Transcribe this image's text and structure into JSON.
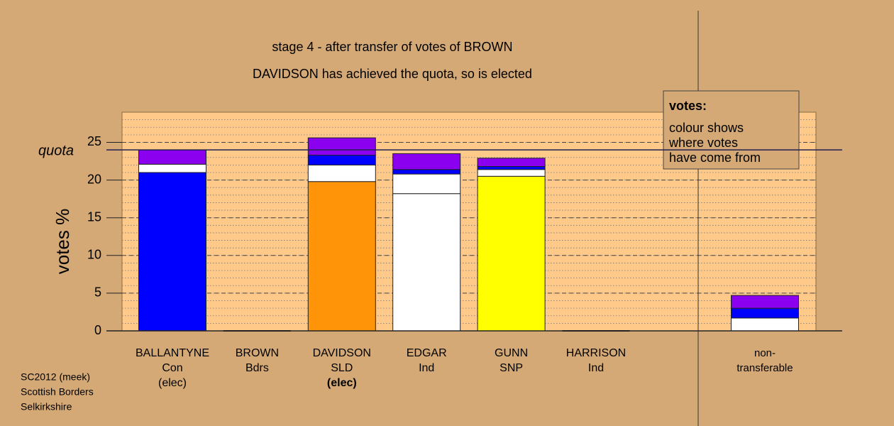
{
  "chart_data": {
    "type": "stacked_bar",
    "title": "stage 4 - after transfer of votes of BROWN",
    "subtitle": "DAVIDSON has achieved the quota, so is elected",
    "y_label": "votes %",
    "quota_label": "quota",
    "quota": 24.0,
    "ylim": [
      0,
      29
    ],
    "yticks": [
      0,
      5,
      10,
      15,
      20,
      25
    ],
    "grid": true,
    "categories": [
      [
        "BALLANTYNE",
        "Con",
        "(elec)"
      ],
      [
        "BROWN",
        "Bdrs"
      ],
      [
        "DAVIDSON",
        "SLD",
        "(elec)"
      ],
      [
        "EDGAR",
        "Ind"
      ],
      [
        "GUNN",
        "SNP"
      ],
      [
        "HARRISON",
        "Ind"
      ],
      [
        "non-",
        "transferable"
      ]
    ],
    "bold_label": [
      2,
      2
    ],
    "stacks": [
      [
        {
          "color": "#0000ff",
          "value": 21.0
        },
        {
          "color": "#ffffff",
          "value": 1.1
        },
        {
          "color": "#8b00ee",
          "value": 1.9
        }
      ],
      [],
      [
        {
          "color": "#ff9408",
          "value": 19.8
        },
        {
          "color": "#ffffff",
          "value": 2.2
        },
        {
          "color": "#0000ff",
          "value": 1.3
        },
        {
          "color": "#8b00ee",
          "value": 2.3
        }
      ],
      [
        {
          "color": "#ffffff",
          "value": 18.2
        },
        {
          "color": "#ffffff",
          "value": 2.6
        },
        {
          "color": "#0000ff",
          "value": 0.6
        },
        {
          "color": "#8b00ee",
          "value": 2.1
        }
      ],
      [
        {
          "color": "#ffff00",
          "value": 20.5
        },
        {
          "color": "#ffffff",
          "value": 0.9
        },
        {
          "color": "#0000ff",
          "value": 0.4
        },
        {
          "color": "#8b00ee",
          "value": 1.1
        }
      ],
      [],
      [
        {
          "color": "#ffffff",
          "value": 1.7
        },
        {
          "color": "#0000ff",
          "value": 1.3
        },
        {
          "color": "#8b00ee",
          "value": 1.7
        }
      ]
    ],
    "legend": {
      "title": "votes:",
      "lines": [
        "colour shows",
        "where votes",
        "have come from"
      ]
    },
    "footer": [
      "SC2012 (meek)",
      "Scottish Borders",
      "Selkirkshire"
    ]
  }
}
